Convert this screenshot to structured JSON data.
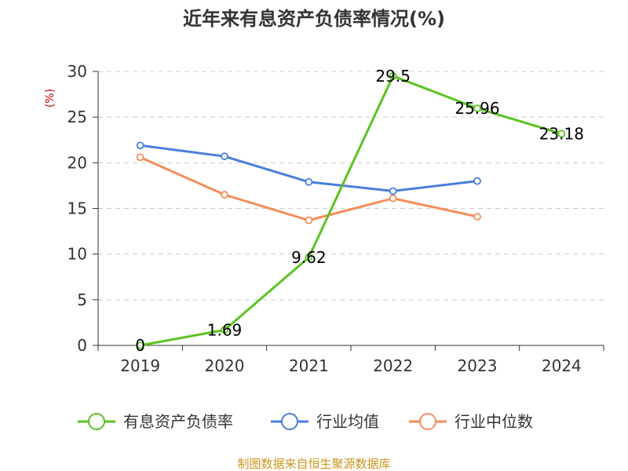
{
  "chart_data": {
    "type": "line",
    "title": "近年来有息资产负债率情况(%)",
    "ylabel": "(%)",
    "xlabel": "",
    "categories": [
      "2019",
      "2020",
      "2021",
      "2022",
      "2023",
      "2024"
    ],
    "ylim": [
      0,
      30
    ],
    "yticks": [
      0,
      5,
      10,
      15,
      20,
      25,
      30
    ],
    "grid": true,
    "legend_position": "bottom",
    "series": [
      {
        "name": "有息资产负债率",
        "color": "#5cc320",
        "values": [
          0,
          1.69,
          9.62,
          29.5,
          25.96,
          23.18
        ],
        "data_labels": [
          "0",
          "1.69",
          "9.62",
          "29.5",
          "25.96",
          "23.18"
        ]
      },
      {
        "name": "行业均值",
        "color": "#4a7fdc",
        "values": [
          21.9,
          20.7,
          17.9,
          16.9,
          18.0,
          null
        ],
        "data_labels": []
      },
      {
        "name": "行业中位数",
        "color": "#f58d5a",
        "values": [
          20.6,
          16.5,
          13.7,
          16.1,
          14.1,
          null
        ],
        "data_labels": []
      }
    ]
  },
  "footer": {
    "source": "制图数据来自恒生聚源数据库"
  }
}
